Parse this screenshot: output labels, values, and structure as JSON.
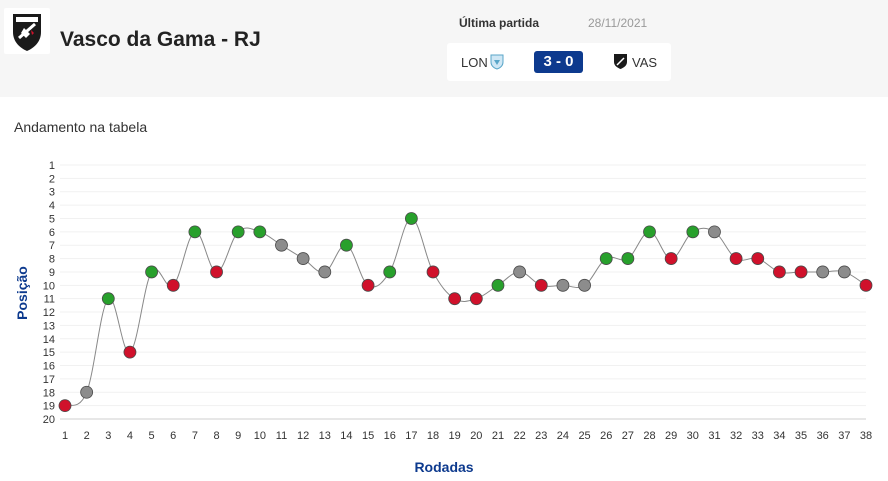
{
  "header": {
    "team_name": "Vasco da Gama - RJ",
    "last_match_label": "Última partida",
    "last_match_date": "28/11/2021",
    "home_abbr": "LON",
    "score": "3 - 0",
    "away_abbr": "VAS"
  },
  "colors": {
    "win": "#28a02c",
    "loss": "#d0112b",
    "draw": "#8c8c8c",
    "axis_label": "#0d3a8e",
    "line": "#888888",
    "score_bg": "#0d3a8e"
  },
  "chart_data": {
    "type": "line",
    "title": "Andamento na tabela",
    "xlabel": "Rodadas",
    "ylabel": "Posição",
    "ylim": [
      1,
      20
    ],
    "y_inverted": true,
    "yticks": [
      1,
      2,
      3,
      4,
      5,
      6,
      7,
      8,
      9,
      10,
      11,
      12,
      13,
      14,
      15,
      16,
      17,
      18,
      19,
      20
    ],
    "x": [
      1,
      2,
      3,
      4,
      5,
      6,
      7,
      8,
      9,
      10,
      11,
      12,
      13,
      14,
      15,
      16,
      17,
      18,
      19,
      20,
      21,
      22,
      23,
      24,
      25,
      26,
      27,
      28,
      29,
      30,
      31,
      32,
      33,
      34,
      35,
      36,
      37,
      38
    ],
    "positions": [
      19,
      18,
      11,
      15,
      9,
      10,
      6,
      9,
      6,
      6,
      7,
      8,
      9,
      7,
      10,
      9,
      5,
      9,
      11,
      11,
      10,
      9,
      10,
      10,
      10,
      8,
      8,
      6,
      8,
      6,
      6,
      8,
      8,
      9,
      9,
      9,
      9,
      10
    ],
    "results": [
      "L",
      "D",
      "W",
      "L",
      "W",
      "L",
      "W",
      "L",
      "W",
      "W",
      "D",
      "D",
      "D",
      "W",
      "L",
      "W",
      "W",
      "L",
      "L",
      "L",
      "W",
      "D",
      "L",
      "D",
      "D",
      "W",
      "W",
      "W",
      "L",
      "W",
      "D",
      "L",
      "L",
      "L",
      "L",
      "D",
      "D",
      "L"
    ],
    "grid": "horizontal"
  }
}
